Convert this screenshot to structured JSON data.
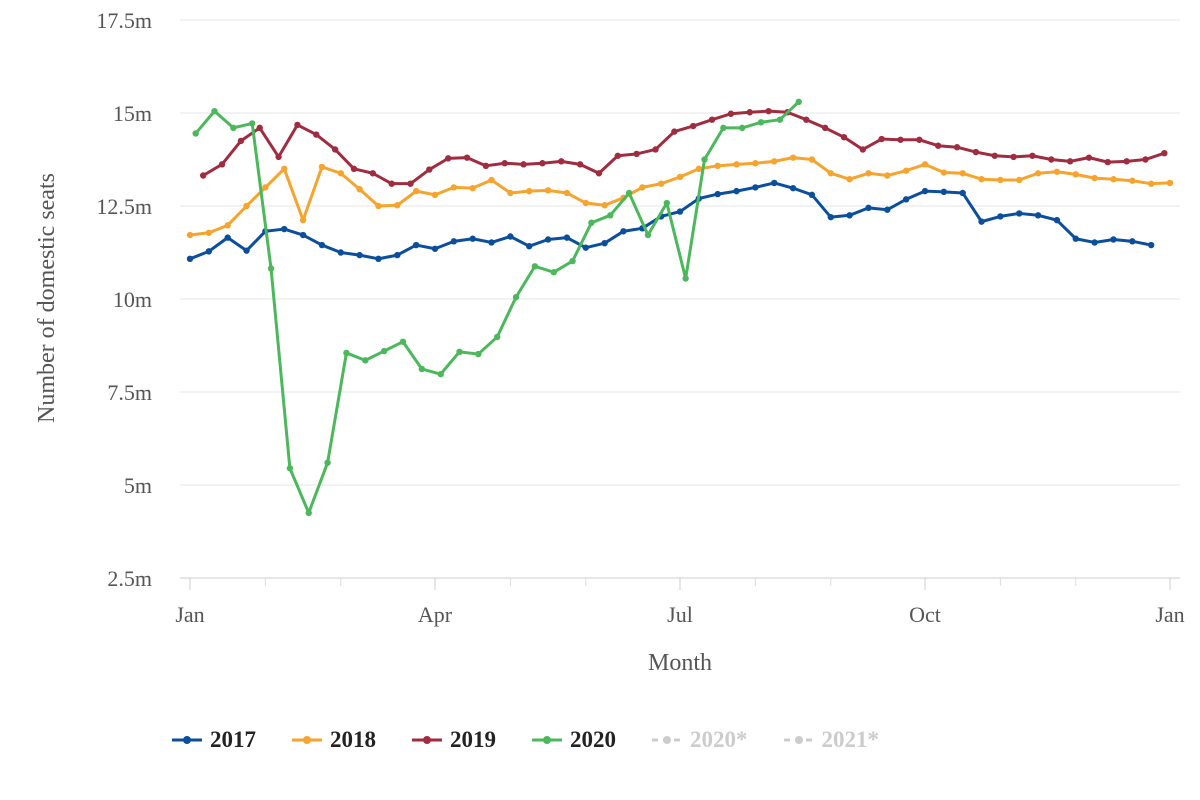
{
  "chart_data": {
    "type": "line",
    "xlabel": "Month",
    "ylabel": "Number of domestic seats",
    "x_ticks": [
      "Jan",
      "Apr",
      "Jul",
      "Oct",
      "Jan"
    ],
    "y_ticks": [
      "2.5m",
      "5m",
      "7.5m",
      "10m",
      "12.5m",
      "15m",
      "17.5m"
    ],
    "ylim": [
      2.5,
      17.5
    ],
    "xlim_weeks": [
      0,
      52
    ],
    "grid": "horizontal",
    "legend_position": "bottom-left",
    "series": [
      {
        "name": "2017",
        "color": "#0b4f9c",
        "visible": true,
        "x": [
          0,
          1,
          2,
          3,
          4,
          5,
          6,
          7,
          8,
          9,
          10,
          11,
          12,
          13,
          14,
          15,
          16,
          17,
          18,
          19,
          20,
          21,
          22,
          23,
          24,
          25,
          26,
          27,
          28,
          29,
          30,
          31,
          32,
          33,
          34,
          35,
          36,
          37,
          38,
          39,
          40,
          41,
          42,
          43,
          44,
          45,
          46,
          47,
          48,
          49,
          50,
          51
        ],
        "values": [
          11.08,
          11.28,
          11.65,
          11.3,
          11.82,
          11.88,
          11.72,
          11.45,
          11.25,
          11.18,
          11.08,
          11.18,
          11.45,
          11.35,
          11.55,
          11.62,
          11.52,
          11.68,
          11.42,
          11.6,
          11.65,
          11.38,
          11.5,
          11.82,
          11.9,
          12.22,
          12.35,
          12.7,
          12.82,
          12.9,
          13.0,
          13.12,
          12.98,
          12.8,
          12.2,
          12.25,
          12.45,
          12.4,
          12.68,
          12.9,
          12.88,
          12.85,
          12.08,
          12.22,
          12.3,
          12.25,
          12.12,
          11.62,
          11.52,
          11.6,
          11.55,
          11.45
        ]
      },
      {
        "name": "2018",
        "color": "#f7a42e",
        "visible": true,
        "x": [
          0,
          1,
          2,
          3,
          4,
          5,
          6,
          7,
          8,
          9,
          10,
          11,
          12,
          13,
          14,
          15,
          16,
          17,
          18,
          19,
          20,
          21,
          22,
          23,
          24,
          25,
          26,
          27,
          28,
          29,
          30,
          31,
          32,
          33,
          34,
          35,
          36,
          37,
          38,
          39,
          40,
          41,
          42,
          43,
          44,
          45,
          46,
          47,
          48,
          49,
          50,
          51,
          52
        ],
        "values": [
          11.72,
          11.78,
          11.98,
          12.5,
          13.0,
          13.5,
          12.12,
          13.55,
          13.38,
          12.95,
          12.5,
          12.52,
          12.9,
          12.8,
          13.0,
          12.98,
          13.2,
          12.85,
          12.9,
          12.92,
          12.85,
          12.58,
          12.52,
          12.72,
          13.0,
          13.1,
          13.28,
          13.5,
          13.58,
          13.62,
          13.65,
          13.7,
          13.8,
          13.75,
          13.38,
          13.22,
          13.38,
          13.32,
          13.45,
          13.62,
          13.4,
          13.38,
          13.22,
          13.2,
          13.2,
          13.38,
          13.42,
          13.35,
          13.25,
          13.22,
          13.18,
          13.1,
          13.12
        ]
      },
      {
        "name": "2019",
        "color": "#a02c40",
        "visible": true,
        "x": [
          0.7,
          1.7,
          2.7,
          3.7,
          4.7,
          5.7,
          6.7,
          7.7,
          8.7,
          9.7,
          10.7,
          11.7,
          12.7,
          13.7,
          14.7,
          15.7,
          16.7,
          17.7,
          18.7,
          19.7,
          20.7,
          21.7,
          22.7,
          23.7,
          24.7,
          25.7,
          26.7,
          27.7,
          28.7,
          29.7,
          30.7,
          31.7,
          32.7,
          33.7,
          34.7,
          35.7,
          36.7,
          37.7,
          38.7,
          39.7,
          40.7,
          41.7,
          42.7,
          43.7,
          44.7,
          45.7,
          46.7,
          47.7,
          48.7,
          49.7,
          50.7,
          51.7
        ],
        "values": [
          13.32,
          13.62,
          14.25,
          14.6,
          13.82,
          14.68,
          14.42,
          14.02,
          13.5,
          13.38,
          13.1,
          13.1,
          13.48,
          13.78,
          13.8,
          13.58,
          13.65,
          13.62,
          13.65,
          13.7,
          13.62,
          13.38,
          13.85,
          13.9,
          14.02,
          14.5,
          14.65,
          14.82,
          14.98,
          15.02,
          15.05,
          15.02,
          14.82,
          14.6,
          14.35,
          14.02,
          14.3,
          14.28,
          14.28,
          14.12,
          14.08,
          13.95,
          13.85,
          13.82,
          13.85,
          13.75,
          13.7,
          13.8,
          13.68,
          13.7,
          13.75,
          13.92
        ]
      },
      {
        "name": "2020",
        "color": "#4cb85c",
        "visible": true,
        "x": [
          0.3,
          1.3,
          2.3,
          3.3,
          4.3,
          5.3,
          6.3,
          7.3,
          8.3,
          9.3,
          10.3,
          11.3,
          12.3,
          13.3,
          14.3,
          15.3,
          16.3,
          17.3,
          18.3,
          19.3,
          20.3,
          21.3,
          22.3,
          23.3,
          24.3,
          25.3,
          26.3,
          27.3,
          28.3,
          29.3,
          30.3,
          31.3,
          32.3
        ],
        "values": [
          14.45,
          15.05,
          14.6,
          14.72,
          10.82,
          5.45,
          4.25,
          5.6,
          8.55,
          8.35,
          8.6,
          8.85,
          8.12,
          7.98,
          8.58,
          8.52,
          8.98,
          10.05,
          10.88,
          10.72,
          11.02,
          12.05,
          12.25,
          12.85,
          11.72,
          12.58,
          10.55,
          13.75,
          14.6,
          14.6,
          14.75,
          14.82,
          15.3
        ]
      },
      {
        "name": "2020*",
        "color": "#cccccc",
        "visible": false,
        "x": [],
        "values": []
      },
      {
        "name": "2021*",
        "color": "#cccccc",
        "visible": false,
        "x": [],
        "values": []
      }
    ]
  }
}
